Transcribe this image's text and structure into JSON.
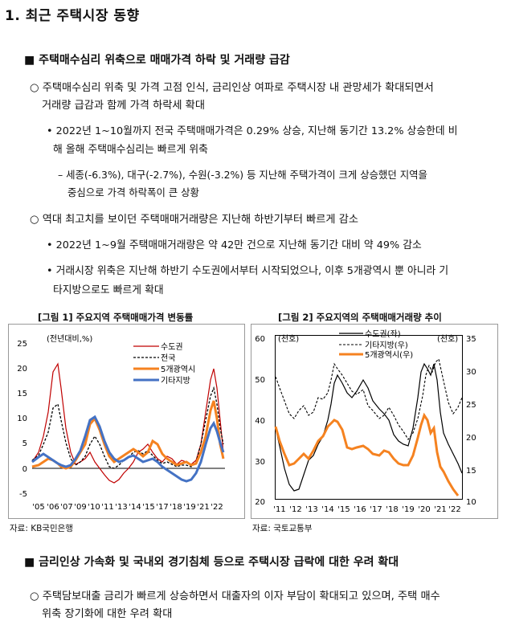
{
  "title": "1. 최근 주택시장 동향",
  "s1": {
    "heading": "■ 주택매수심리 위축으로 매매가격 하락 및 거래량 급감",
    "b1": {
      "l1": "○ 주택매수심리 위축 및 가격 고점 인식, 금리인상 여파로 주택시장 내 관망세가 확대되면서",
      "l2": "거래량 급감과 함께 가격 하락세 확대",
      "d1l1": "• 2022년 1~10월까지 전국 주택매매가격은 0.29% 상승, 지난해 동기간 13.2% 상승한데 비",
      "d1l2": "해 올해 주택매수심리는 빠르게 위축",
      "e1l1": "– 세종(-6.3%), 대구(-2.7%), 수원(-3.2%) 등 지난해 주택가격이 크게 상승했던 지역을",
      "e1l2": "중심으로 가격 하락폭이 큰 상황"
    },
    "b2": {
      "l1": "○ 역대 최고치를 보이던 주택매매거래량은 지난해 하반기부터 빠르게 감소",
      "d1l1": "• 2022년 1~9월 주택매매거래량은 약 42만 건으로 지난해 동기간 대비 약 49% 감소",
      "d2l1": "• 거래시장 위축은 지난해 하반기 수도권에서부터 시작되었으나, 이후 5개광역시 뿐 아니라 기",
      "d2l2": "타지방으로도 빠르게 확대"
    }
  },
  "fig1": {
    "caption": "[그림 1] 주요지역 주택매매가격 변동률",
    "source": "자료: KB국민은행",
    "yunit": "(전년대비,%)",
    "yticks": [
      "25",
      "20",
      "15",
      "10",
      "5",
      "0",
      "-5"
    ],
    "xticks": [
      "'05",
      "'06",
      "'07",
      "'09",
      "'10",
      "'11",
      "'13",
      "'14",
      "'15",
      "'17",
      "'18",
      "'19",
      "'21",
      "'22"
    ],
    "legend": [
      "수도권",
      "전국",
      "5개광역시",
      "기타지방"
    ],
    "colors": {
      "sudo": "#c00000",
      "all": "#000000",
      "metro": "#f58220",
      "other": "#4472c4"
    }
  },
  "fig2": {
    "caption": "[그림 2] 주요지역의 주택매매거래량 추이",
    "source": "자료: 국토교통부",
    "yunit_left": "(천호)",
    "yunit_right": "(천호)",
    "yticks_left": [
      "60",
      "50",
      "40",
      "30",
      "20"
    ],
    "yticks_right": [
      "35",
      "30",
      "25",
      "20",
      "15",
      "10"
    ],
    "xticks": [
      "'11",
      "'12",
      "'13",
      "'14",
      "'15",
      "'16",
      "'17",
      "'18",
      "'19",
      "'20",
      "'21",
      "'22"
    ],
    "legend": [
      "수도권(좌)",
      "기타지방(우)",
      "5개광역시(우)"
    ],
    "colors": {
      "sudo": "#000000",
      "other": "#000000",
      "metro": "#f58220"
    }
  },
  "s2": {
    "heading": "■ 금리인상 가속화 및 국내외 경기침체 등으로 주택시장 급락에 대한 우려 확대",
    "b1": {
      "l1": "○ 주택담보대출 금리가 빠르게 상승하면서 대출자의 이자 부담이 확대되고 있으며, 주택 매수",
      "l2": "위축 장기화에 대한 우려 확대"
    }
  }
}
